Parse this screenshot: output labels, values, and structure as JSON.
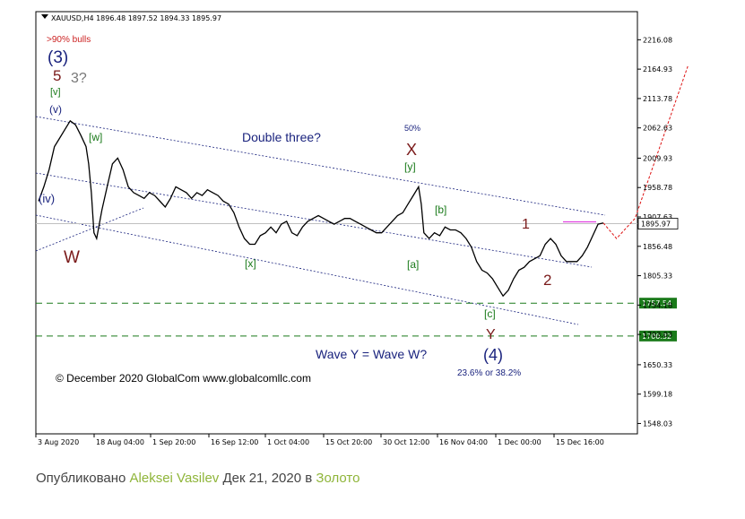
{
  "chart_data": {
    "type": "line",
    "symbol_header": "XAUUSD,H4  1896.48 1897.52 1894.33 1895.97",
    "ylim": [
      1530,
      2265
    ],
    "y_ticks": [
      "2216.08",
      "2164.93",
      "2113.78",
      "2062.63",
      "2009.93",
      "1958.78",
      "1907.63",
      "1856.48",
      "1805.33",
      "1754.18",
      "1703.03",
      "1650.33",
      "1599.18",
      "1548.03"
    ],
    "x_ticks": [
      "3 Aug 2020",
      "18 Aug 04:00",
      "1 Sep 20:00",
      "16 Sep 12:00",
      "1 Oct 04:00",
      "15 Oct 20:00",
      "30 Oct 12:00",
      "16 Nov 04:00",
      "1 Dec 00:00",
      "15 Dec 16:00"
    ],
    "current_price": {
      "value": 1895.97,
      "label": "1895.97"
    },
    "levels": [
      {
        "value": 1757.54,
        "label": "1757.54",
        "color": "#1a7a1a"
      },
      {
        "value": 1700.32,
        "label": "1700.32",
        "color": "#1a7a1a"
      }
    ],
    "series": [
      {
        "values": [
          [
            0,
            1935
          ],
          [
            2,
            1960
          ],
          [
            4,
            1990
          ],
          [
            6,
            2030
          ],
          [
            8,
            2045
          ],
          [
            10,
            2060
          ],
          [
            12,
            2075
          ],
          [
            14,
            2068
          ],
          [
            16,
            2050
          ],
          [
            18,
            2030
          ],
          [
            19,
            2000
          ],
          [
            20,
            1950
          ],
          [
            21,
            1880
          ],
          [
            22,
            1870
          ],
          [
            24,
            1920
          ],
          [
            26,
            1960
          ],
          [
            28,
            2000
          ],
          [
            30,
            2010
          ],
          [
            32,
            1990
          ],
          [
            34,
            1960
          ],
          [
            36,
            1950
          ],
          [
            38,
            1945
          ],
          [
            40,
            1940
          ],
          [
            42,
            1950
          ],
          [
            44,
            1945
          ],
          [
            46,
            1935
          ],
          [
            48,
            1925
          ],
          [
            50,
            1940
          ],
          [
            52,
            1960
          ],
          [
            54,
            1955
          ],
          [
            56,
            1950
          ],
          [
            58,
            1940
          ],
          [
            60,
            1950
          ],
          [
            62,
            1945
          ],
          [
            64,
            1955
          ],
          [
            66,
            1950
          ],
          [
            68,
            1945
          ],
          [
            70,
            1935
          ],
          [
            72,
            1930
          ],
          [
            74,
            1915
          ],
          [
            76,
            1890
          ],
          [
            78,
            1870
          ],
          [
            80,
            1860
          ],
          [
            82,
            1860
          ],
          [
            84,
            1875
          ],
          [
            86,
            1880
          ],
          [
            88,
            1890
          ],
          [
            90,
            1880
          ],
          [
            92,
            1895
          ],
          [
            94,
            1900
          ],
          [
            96,
            1880
          ],
          [
            98,
            1875
          ],
          [
            100,
            1890
          ],
          [
            102,
            1900
          ],
          [
            104,
            1905
          ],
          [
            106,
            1910
          ],
          [
            108,
            1905
          ],
          [
            110,
            1900
          ],
          [
            112,
            1895
          ],
          [
            114,
            1900
          ],
          [
            116,
            1905
          ],
          [
            118,
            1905
          ],
          [
            120,
            1900
          ],
          [
            122,
            1895
          ],
          [
            124,
            1890
          ],
          [
            126,
            1885
          ],
          [
            128,
            1880
          ],
          [
            130,
            1880
          ],
          [
            132,
            1890
          ],
          [
            134,
            1900
          ],
          [
            136,
            1910
          ],
          [
            138,
            1915
          ],
          [
            140,
            1930
          ],
          [
            142,
            1945
          ],
          [
            144,
            1960
          ],
          [
            145,
            1930
          ],
          [
            146,
            1880
          ],
          [
            148,
            1870
          ],
          [
            150,
            1880
          ],
          [
            152,
            1875
          ],
          [
            154,
            1890
          ],
          [
            156,
            1885
          ],
          [
            158,
            1885
          ],
          [
            160,
            1880
          ],
          [
            162,
            1870
          ],
          [
            164,
            1855
          ],
          [
            166,
            1830
          ],
          [
            168,
            1815
          ],
          [
            170,
            1810
          ],
          [
            172,
            1800
          ],
          [
            174,
            1785
          ],
          [
            176,
            1770
          ],
          [
            178,
            1780
          ],
          [
            180,
            1800
          ],
          [
            182,
            1815
          ],
          [
            184,
            1820
          ],
          [
            186,
            1830
          ],
          [
            188,
            1835
          ],
          [
            190,
            1840
          ],
          [
            192,
            1860
          ],
          [
            194,
            1870
          ],
          [
            196,
            1860
          ],
          [
            198,
            1840
          ],
          [
            200,
            1830
          ],
          [
            202,
            1830
          ],
          [
            204,
            1830
          ],
          [
            206,
            1840
          ],
          [
            208,
            1855
          ],
          [
            210,
            1875
          ],
          [
            212,
            1895
          ],
          [
            214,
            1897
          ]
        ]
      }
    ],
    "projection": [
      [
        214,
        1897
      ],
      [
        219,
        1870
      ],
      [
        226,
        1905
      ],
      [
        246,
        2170
      ]
    ],
    "annotations": [
      {
        "text": ">90% bulls",
        "color": "#cc2222"
      },
      {
        "text": "(3)",
        "color": "#1a237e"
      },
      {
        "text": "5",
        "color": "#7a1a1a"
      },
      {
        "text": "3?",
        "color": "#777777"
      },
      {
        "text": "[v]",
        "color": "#1a7a1a"
      },
      {
        "text": "(v)",
        "color": "#1a237e"
      },
      {
        "text": "[w]",
        "color": "#1a7a1a"
      },
      {
        "text": "(iv)",
        "color": "#1a237e"
      },
      {
        "text": "W",
        "color": "#7a1a1a"
      },
      {
        "text": "Double three?",
        "color": "#1a237e"
      },
      {
        "text": "50%",
        "color": "#1a237e"
      },
      {
        "text": "X",
        "color": "#7a1a1a"
      },
      {
        "text": "[y]",
        "color": "#1a7a1a"
      },
      {
        "text": "[b]",
        "color": "#1a7a1a"
      },
      {
        "text": "1",
        "color": "#7a1a1a"
      },
      {
        "text": "[x]",
        "color": "#1a7a1a"
      },
      {
        "text": "[a]",
        "color": "#1a7a1a"
      },
      {
        "text": "2",
        "color": "#7a1a1a"
      },
      {
        "text": "[c]",
        "color": "#1a7a1a"
      },
      {
        "text": "Y",
        "color": "#7a1a1a"
      },
      {
        "text": "(4)",
        "color": "#1a237e"
      },
      {
        "text": "Wave Y = Wave W?",
        "color": "#1a237e"
      },
      {
        "text": "23.6% or 38.2%",
        "color": "#1a237e"
      },
      {
        "text": "© December 2020 GlobalCom www.globalcomllc.com",
        "color": "#000000"
      }
    ]
  },
  "caption": {
    "prefix": "Опубликовано ",
    "author": "Aleksei Vasilev",
    "middle": " Дек 21, 2020 в ",
    "category": "Золото"
  }
}
